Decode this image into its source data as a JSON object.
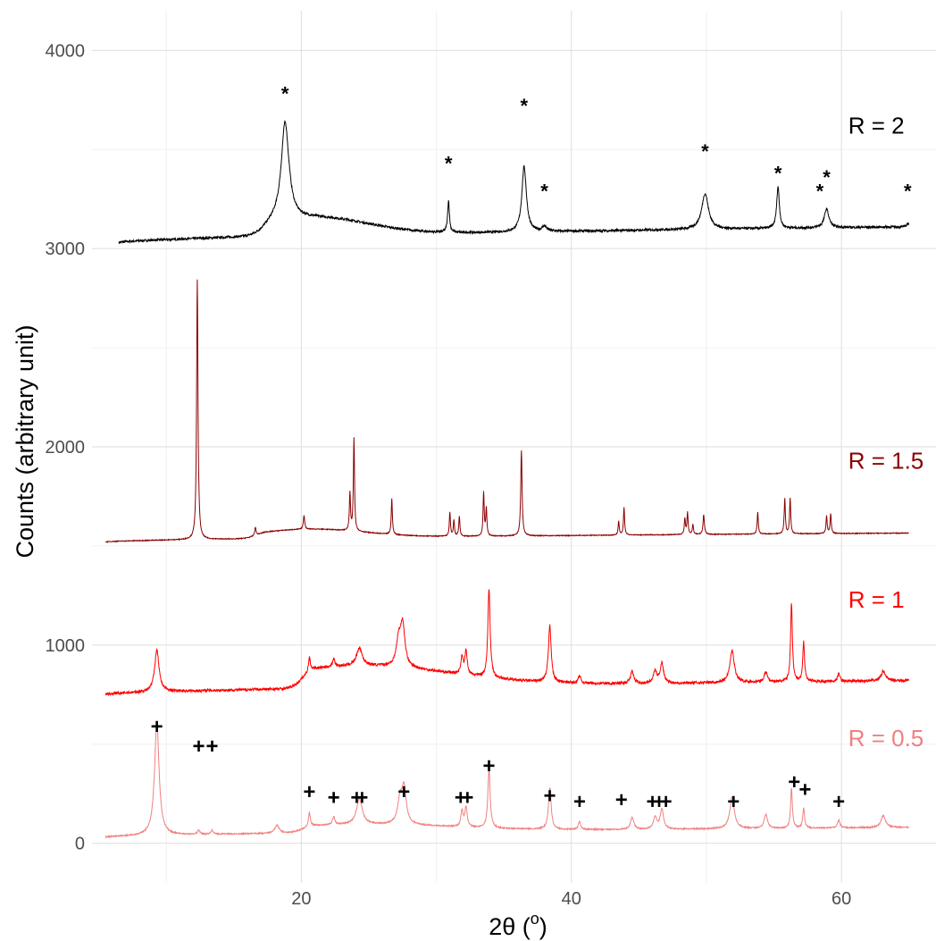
{
  "chart_data": {
    "type": "line",
    "title": "",
    "xlabel": "2θ (o)",
    "xlabel_main": "2θ (",
    "xlabel_sup": "o",
    "xlabel_close": ")",
    "ylabel": "Counts (arbitrary unit)",
    "xlim": [
      4.5,
      67
    ],
    "ylim": [
      -200,
      4200
    ],
    "x_ticks": [
      20,
      40,
      60
    ],
    "y_ticks": [
      0,
      1000,
      2000,
      3000,
      4000
    ],
    "grid": true,
    "legend": "inline labels at right",
    "series": [
      {
        "name": "R = 2",
        "color": "#000000",
        "label_pos": [
          60.5,
          3620
        ],
        "x_range": [
          6.5,
          65
        ],
        "baseline": [
          3030,
          3110
        ],
        "hump": {
          "center": 21,
          "height": 90,
          "width": 4
        },
        "peaks": [
          [
            18.8,
            500,
            0.35
          ],
          [
            30.9,
            160,
            0.08
          ],
          [
            36.5,
            330,
            0.2
          ],
          [
            38.0,
            25,
            0.2
          ],
          [
            49.9,
            180,
            0.3
          ],
          [
            55.3,
            210,
            0.12
          ],
          [
            58.9,
            95,
            0.2
          ],
          [
            64.9,
            15,
            0.1
          ]
        ],
        "noise": 6
      },
      {
        "name": "R = 1.5",
        "color": "#8b0000",
        "label_pos": [
          60.5,
          1930
        ],
        "x_range": [
          5.5,
          65
        ],
        "baseline": [
          1520,
          1565
        ],
        "hump": {
          "center": 20.5,
          "height": 45,
          "width": 4
        },
        "peaks": [
          [
            12.3,
            1310,
            0.06
          ],
          [
            16.6,
            40,
            0.06
          ],
          [
            20.2,
            70,
            0.06
          ],
          [
            23.6,
            190,
            0.05
          ],
          [
            23.9,
            470,
            0.05
          ],
          [
            26.7,
            180,
            0.05
          ],
          [
            31.0,
            120,
            0.05
          ],
          [
            31.3,
            80,
            0.05
          ],
          [
            31.7,
            100,
            0.05
          ],
          [
            33.5,
            220,
            0.05
          ],
          [
            33.7,
            140,
            0.05
          ],
          [
            36.3,
            430,
            0.06
          ],
          [
            43.5,
            70,
            0.05
          ],
          [
            43.9,
            140,
            0.05
          ],
          [
            48.4,
            80,
            0.05
          ],
          [
            48.6,
            110,
            0.05
          ],
          [
            49.0,
            50,
            0.05
          ],
          [
            49.8,
            100,
            0.06
          ],
          [
            53.8,
            110,
            0.05
          ],
          [
            55.8,
            180,
            0.05
          ],
          [
            56.2,
            180,
            0.05
          ],
          [
            58.9,
            90,
            0.05
          ],
          [
            59.2,
            100,
            0.05
          ]
        ],
        "noise": 2
      },
      {
        "name": "R = 1",
        "color": "#ff0000",
        "label_pos": [
          60.5,
          1230
        ],
        "x_range": [
          5.5,
          65
        ],
        "baseline": [
          750,
          820
        ],
        "hump": {
          "center": 24,
          "height": 110,
          "width": 7
        },
        "peaks": [
          [
            9.3,
            210,
            0.2
          ],
          [
            20.6,
            70,
            0.08
          ],
          [
            22.4,
            40,
            0.1
          ],
          [
            24.3,
            90,
            0.25
          ],
          [
            27.2,
            120,
            0.2
          ],
          [
            27.5,
            210,
            0.2
          ],
          [
            31.9,
            90,
            0.1
          ],
          [
            32.2,
            120,
            0.1
          ],
          [
            33.9,
            450,
            0.1
          ],
          [
            38.4,
            290,
            0.12
          ],
          [
            40.6,
            40,
            0.1
          ],
          [
            44.5,
            60,
            0.15
          ],
          [
            46.2,
            60,
            0.15
          ],
          [
            46.7,
            100,
            0.15
          ],
          [
            51.9,
            160,
            0.2
          ],
          [
            54.4,
            50,
            0.15
          ],
          [
            56.3,
            400,
            0.08
          ],
          [
            57.2,
            200,
            0.08
          ],
          [
            59.8,
            40,
            0.1
          ],
          [
            63.1,
            50,
            0.2
          ]
        ],
        "noise": 7
      },
      {
        "name": "R = 0.5",
        "color": "#f08080",
        "label_pos": [
          60.5,
          530
        ],
        "x_range": [
          5.5,
          65
        ],
        "baseline": [
          30,
          80
        ],
        "hump": {
          "center": 24,
          "height": 40,
          "width": 7
        },
        "peaks": [
          [
            9.3,
            570,
            0.2
          ],
          [
            12.4,
            20,
            0.1
          ],
          [
            13.4,
            20,
            0.1
          ],
          [
            18.2,
            40,
            0.2
          ],
          [
            20.6,
            70,
            0.08
          ],
          [
            22.4,
            40,
            0.1
          ],
          [
            24.3,
            130,
            0.25
          ],
          [
            27.3,
            110,
            0.2
          ],
          [
            27.6,
            180,
            0.2
          ],
          [
            31.9,
            80,
            0.1
          ],
          [
            32.2,
            100,
            0.1
          ],
          [
            33.9,
            300,
            0.1
          ],
          [
            38.4,
            210,
            0.12
          ],
          [
            40.6,
            40,
            0.1
          ],
          [
            44.5,
            60,
            0.15
          ],
          [
            46.2,
            60,
            0.15
          ],
          [
            46.7,
            100,
            0.15
          ],
          [
            51.9,
            160,
            0.2
          ],
          [
            54.4,
            70,
            0.15
          ],
          [
            56.3,
            200,
            0.08
          ],
          [
            57.2,
            100,
            0.08
          ],
          [
            59.8,
            40,
            0.1
          ],
          [
            63.1,
            60,
            0.2
          ]
        ],
        "noise": 3
      }
    ],
    "annotations": [
      {
        "symbol": "*",
        "x": 18.8,
        "y": 3800
      },
      {
        "symbol": "*",
        "x": 30.9,
        "y": 3450
      },
      {
        "symbol": "*",
        "x": 36.5,
        "y": 3740
      },
      {
        "symbol": "*",
        "x": 38.0,
        "y": 3310
      },
      {
        "symbol": "*",
        "x": 49.9,
        "y": 3510
      },
      {
        "symbol": "*",
        "x": 55.3,
        "y": 3400
      },
      {
        "symbol": "*",
        "x": 58.4,
        "y": 3310
      },
      {
        "symbol": "*",
        "x": 58.9,
        "y": 3380
      },
      {
        "symbol": "*",
        "x": 64.9,
        "y": 3310
      },
      {
        "symbol": "+",
        "x": 9.3,
        "y": 590
      },
      {
        "symbol": "+",
        "x": 12.4,
        "y": 490
      },
      {
        "symbol": "+",
        "x": 13.4,
        "y": 490
      },
      {
        "symbol": "+",
        "x": 20.6,
        "y": 260
      },
      {
        "symbol": "+",
        "x": 22.4,
        "y": 230
      },
      {
        "symbol": "+",
        "x": 24.1,
        "y": 230
      },
      {
        "symbol": "+",
        "x": 24.5,
        "y": 230
      },
      {
        "symbol": "+",
        "x": 27.6,
        "y": 260
      },
      {
        "symbol": "+",
        "x": 31.8,
        "y": 230
      },
      {
        "symbol": "+",
        "x": 32.3,
        "y": 230
      },
      {
        "symbol": "+",
        "x": 33.9,
        "y": 390
      },
      {
        "symbol": "+",
        "x": 38.4,
        "y": 240
      },
      {
        "symbol": "+",
        "x": 40.6,
        "y": 210
      },
      {
        "symbol": "+",
        "x": 43.7,
        "y": 220
      },
      {
        "symbol": "+",
        "x": 46.0,
        "y": 210
      },
      {
        "symbol": "+",
        "x": 46.5,
        "y": 210
      },
      {
        "symbol": "+",
        "x": 47.0,
        "y": 210
      },
      {
        "symbol": "+",
        "x": 52.0,
        "y": 210
      },
      {
        "symbol": "+",
        "x": 56.5,
        "y": 310
      },
      {
        "symbol": "+",
        "x": 57.3,
        "y": 270
      },
      {
        "symbol": "+",
        "x": 59.8,
        "y": 210
      }
    ]
  }
}
